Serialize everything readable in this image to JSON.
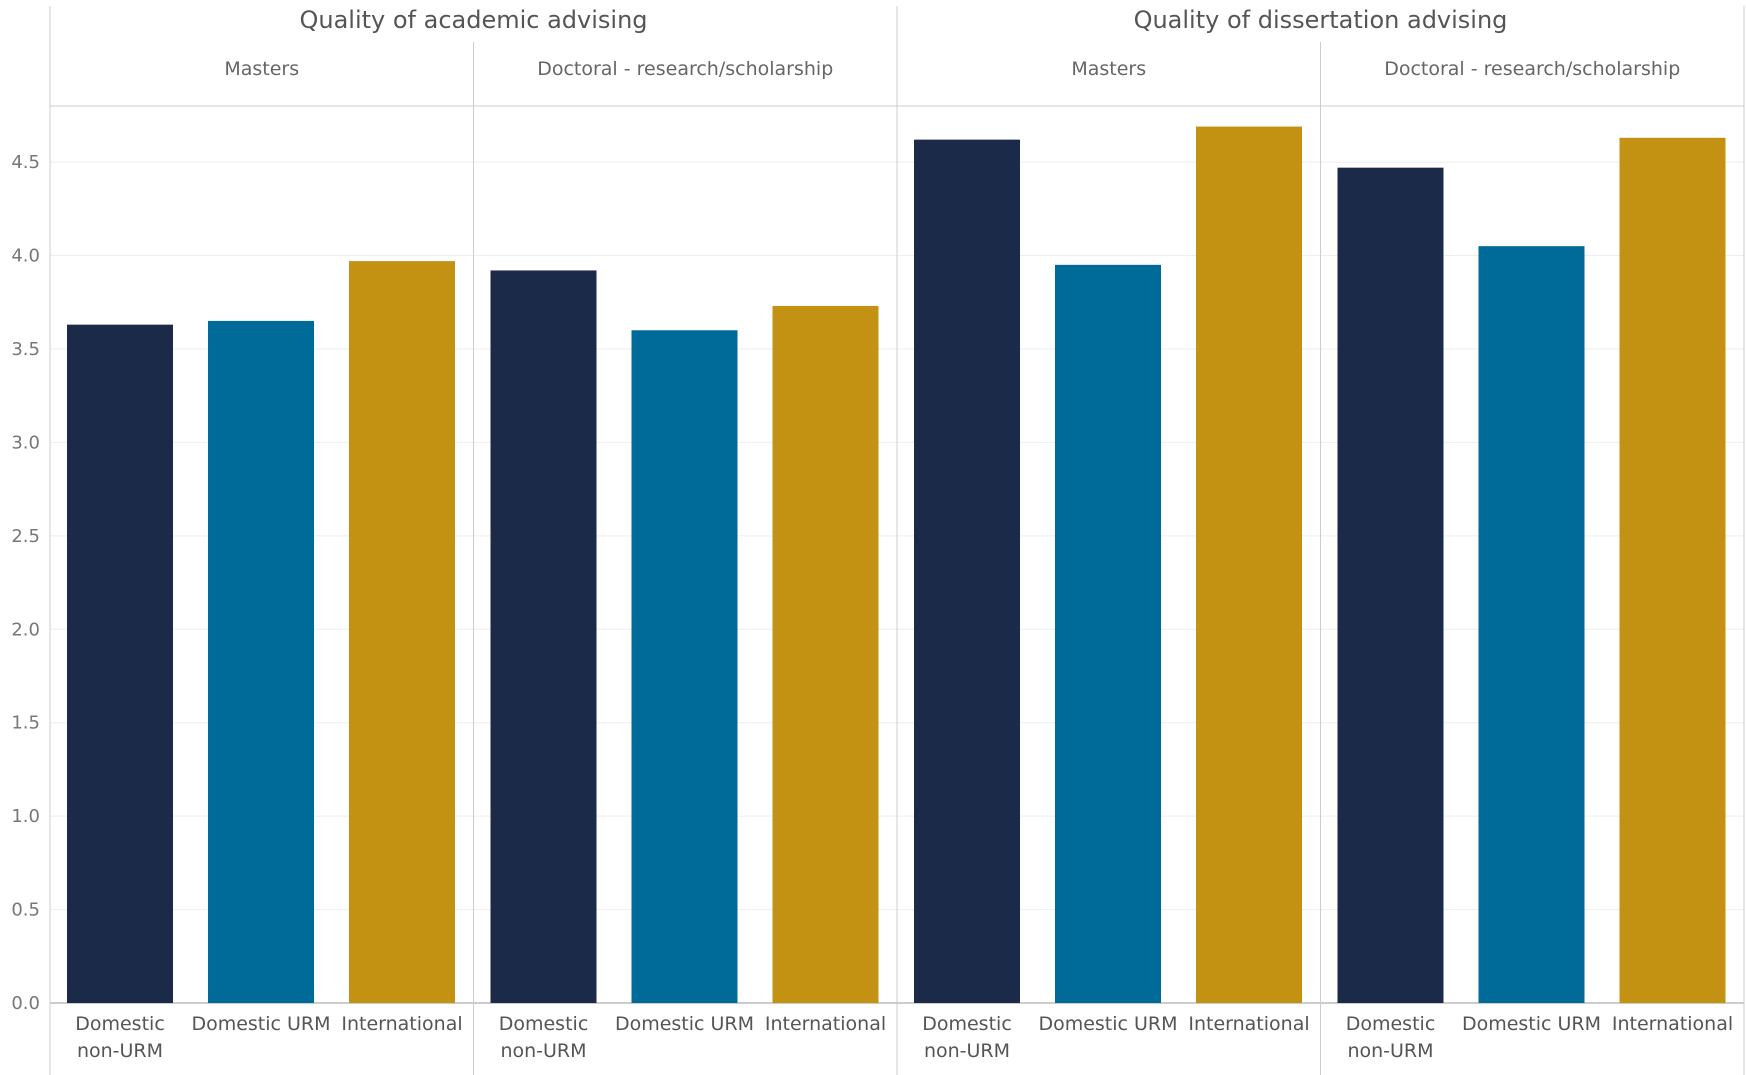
{
  "chart_data": {
    "type": "bar",
    "ylim": [
      0,
      4.8
    ],
    "yticks": [
      "0.0",
      "0.5",
      "1.0",
      "1.5",
      "2.0",
      "2.5",
      "3.0",
      "3.5",
      "4.0",
      "4.5"
    ],
    "grid": true,
    "colors": {
      "Domestic non-URM": "#1b2a49",
      "Domestic URM": "#006b99",
      "International": "#c49213"
    },
    "categories": [
      {
        "key": "Domestic non-URM",
        "lines": [
          "Domestic",
          "non-URM"
        ]
      },
      {
        "key": "Domestic URM",
        "lines": [
          "Domestic URM"
        ]
      },
      {
        "key": "International",
        "lines": [
          "International"
        ]
      }
    ],
    "groups": [
      {
        "title": "Quality of academic advising",
        "panels": [
          {
            "title": "Masters",
            "values": [
              3.63,
              3.65,
              3.97
            ]
          },
          {
            "title": "Doctoral - research/scholarship",
            "values": [
              3.92,
              3.6,
              3.73
            ]
          }
        ]
      },
      {
        "title": "Quality of dissertation advising",
        "panels": [
          {
            "title": "Masters",
            "values": [
              4.62,
              3.95,
              4.69
            ]
          },
          {
            "title": "Doctoral - research/scholarship",
            "values": [
              4.47,
              4.05,
              4.63
            ]
          }
        ]
      }
    ]
  }
}
